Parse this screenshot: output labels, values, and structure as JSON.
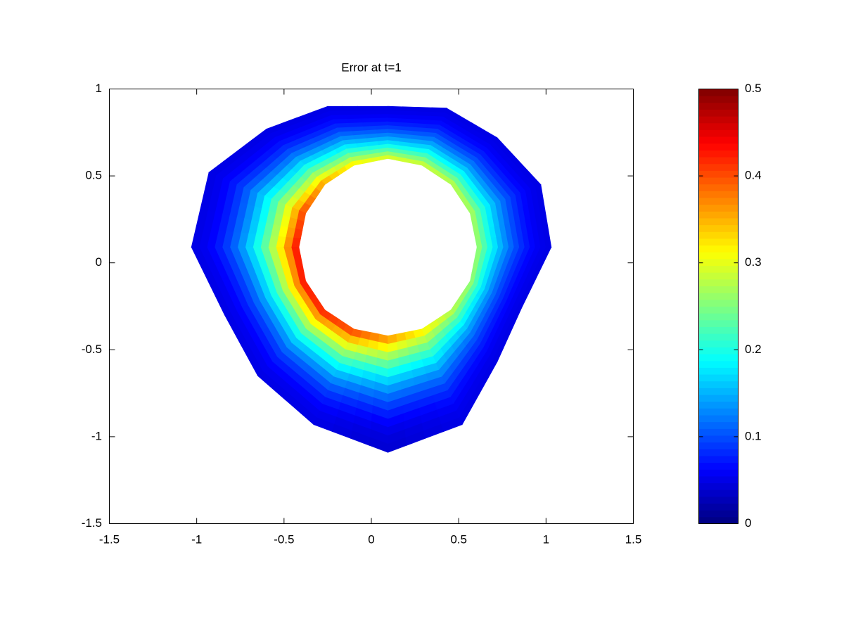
{
  "chart_data": {
    "type": "field",
    "title": "Error at t=1",
    "colormap": "jet",
    "xlim": [
      -1.5,
      1.5
    ],
    "ylim": [
      -1.5,
      1
    ],
    "xticks": [
      -1.5,
      -1,
      -0.5,
      0,
      0.5,
      1,
      1.5
    ],
    "yticks": [
      -1.5,
      -1,
      -0.5,
      0,
      0.5,
      1
    ],
    "field": {
      "inner": {
        "x": [
          0.605,
          0.566,
          0.456,
          0.29,
          0.095,
          -0.1,
          -0.266,
          -0.376,
          -0.415,
          -0.376,
          -0.266,
          -0.1,
          0.095,
          0.29,
          0.456,
          0.566
        ],
        "y": [
          0.09,
          0.285,
          0.451,
          0.561,
          0.6,
          0.561,
          0.451,
          0.285,
          0.09,
          -0.105,
          -0.271,
          -0.381,
          -0.42,
          -0.381,
          -0.271,
          -0.105
        ],
        "values": [
          0.27,
          0.28,
          0.29,
          0.3,
          0.31,
          0.33,
          0.37,
          0.42,
          0.45,
          0.45,
          0.44,
          0.42,
          0.38,
          0.33,
          0.29,
          0.27
        ]
      },
      "outer": {
        "x": [
          1.03,
          0.97,
          0.72,
          0.43,
          0.095,
          -0.25,
          -0.6,
          -0.93,
          -1.03,
          -0.84,
          -0.65,
          -0.33,
          0.095,
          0.52,
          0.72,
          0.86
        ],
        "y": [
          0.09,
          0.45,
          0.72,
          0.89,
          0.9,
          0.9,
          0.77,
          0.52,
          0.09,
          -0.3,
          -0.65,
          -0.93,
          -1.09,
          -0.93,
          -0.57,
          -0.26
        ],
        "values": [
          0.05,
          0.05,
          0.05,
          0.05,
          0.05,
          0.05,
          0.05,
          0.05,
          0.05,
          0.05,
          0.05,
          0.05,
          0.04,
          0.05,
          0.05,
          0.05
        ]
      }
    },
    "colorbar": {
      "clim": [
        0,
        0.5
      ],
      "ticks": [
        0,
        0.1,
        0.2,
        0.3,
        0.4,
        0.5
      ]
    }
  }
}
